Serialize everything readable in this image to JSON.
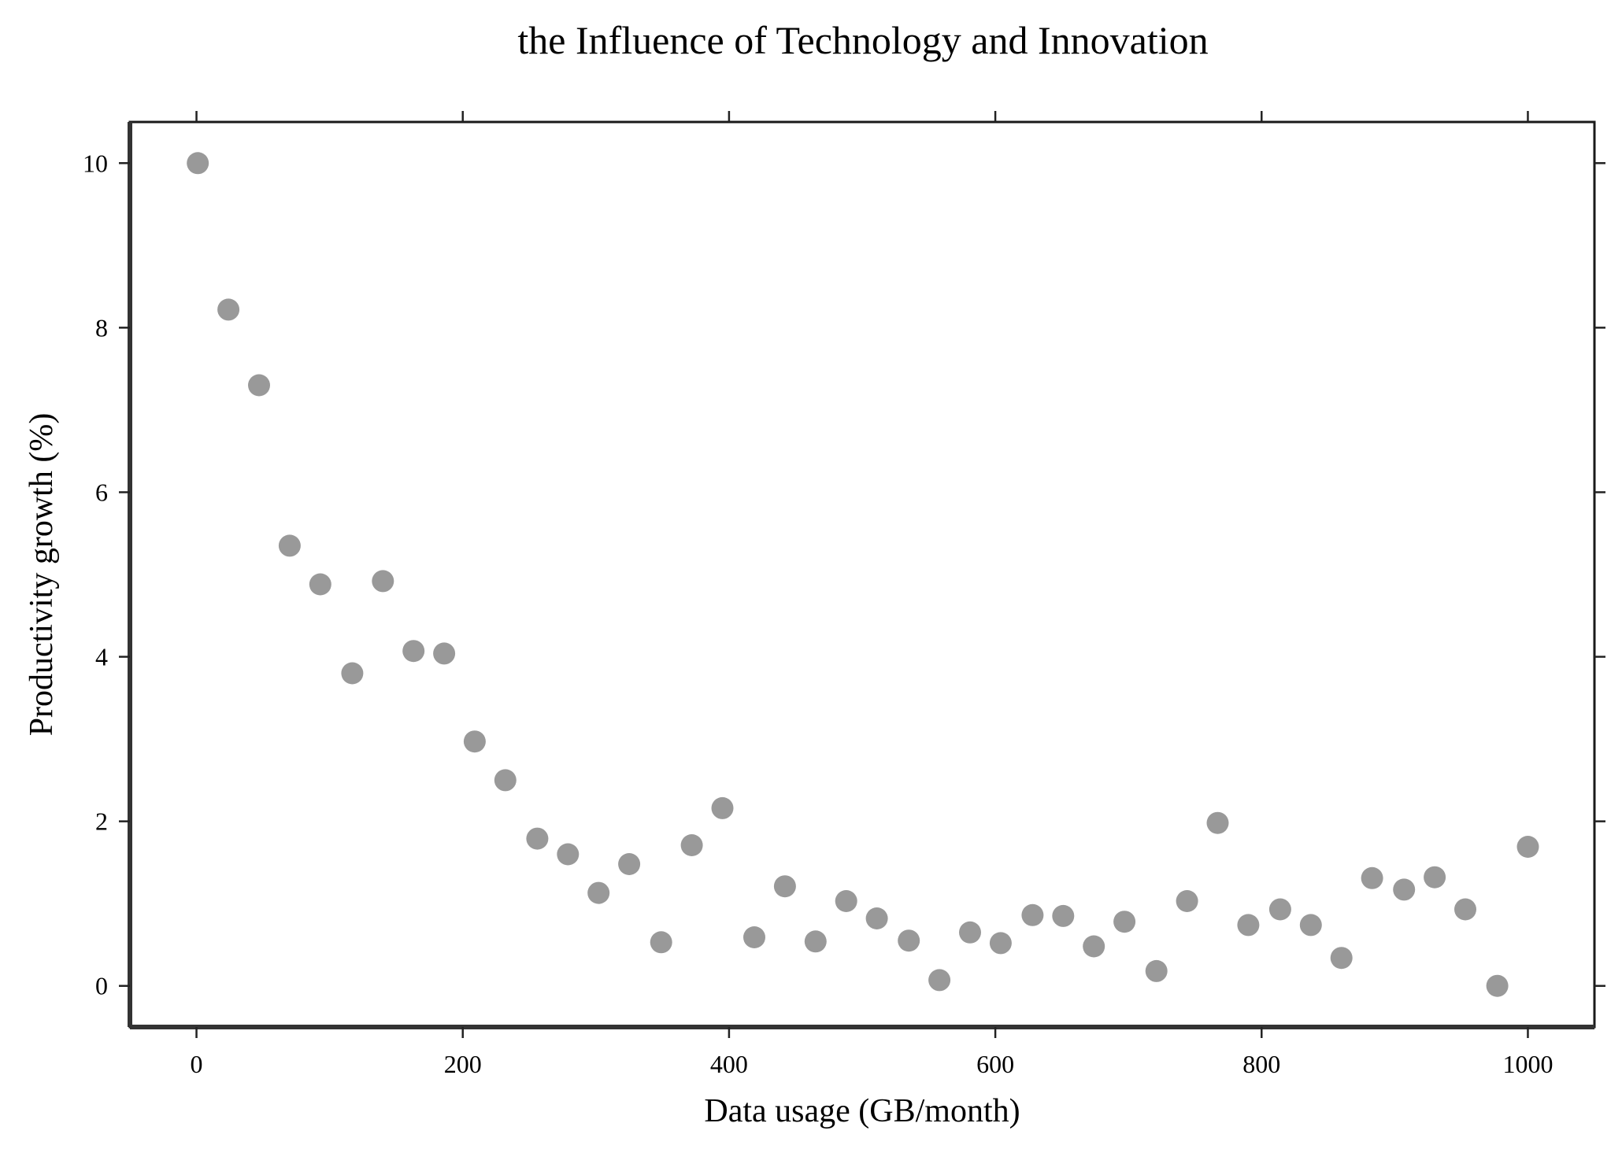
{
  "chart_data": {
    "type": "scatter",
    "title": "the Influence of Technology and Innovation",
    "xlabel": "Data usage (GB/month)",
    "ylabel": "Productivity growth (%)",
    "xlim": [
      -50,
      1050
    ],
    "ylim": [
      -0.5,
      10.5
    ],
    "xticks": [
      0,
      200,
      400,
      600,
      800,
      1000
    ],
    "yticks": [
      0,
      2,
      4,
      6,
      8,
      10
    ],
    "grid": false,
    "marker_color": "#999999",
    "series": [
      {
        "x": [
          1,
          24,
          47,
          70,
          93,
          117,
          140,
          163,
          186,
          209,
          232,
          256,
          279,
          302,
          325,
          349,
          372,
          395,
          419,
          442,
          465,
          488,
          511,
          535,
          558,
          581,
          604,
          628,
          651,
          674,
          697,
          721,
          744,
          767,
          790,
          814,
          837,
          860,
          883,
          907,
          930,
          953,
          977,
          1000
        ],
        "y": [
          10.0,
          8.22,
          7.3,
          5.35,
          4.88,
          3.8,
          4.92,
          4.07,
          4.04,
          2.97,
          2.5,
          1.79,
          1.6,
          1.13,
          1.48,
          0.53,
          1.71,
          2.16,
          0.59,
          1.21,
          0.54,
          1.03,
          0.82,
          0.55,
          0.07,
          0.65,
          0.52,
          0.86,
          0.85,
          0.48,
          0.78,
          0.18,
          1.03,
          1.98,
          0.74,
          0.93,
          0.74,
          0.34,
          1.31,
          1.17,
          1.32,
          0.93,
          0.0,
          1.69
        ]
      }
    ]
  }
}
